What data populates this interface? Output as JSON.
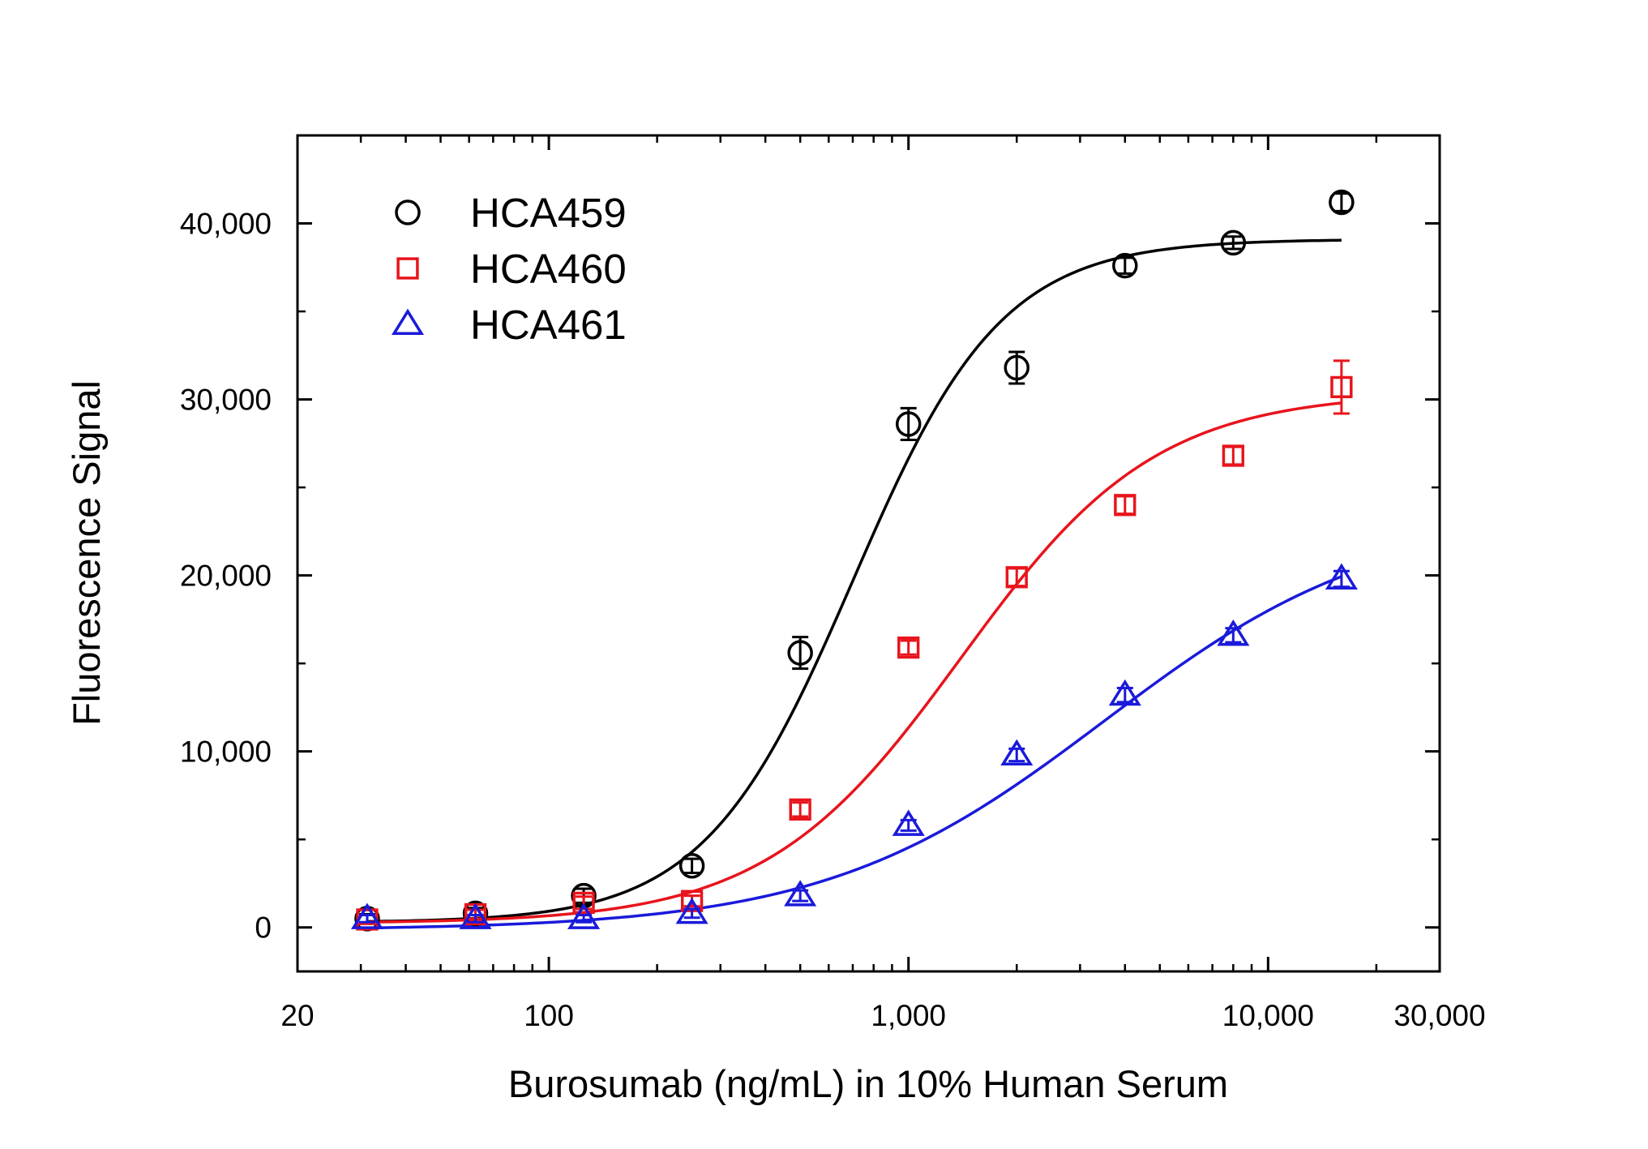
{
  "chart_data": {
    "type": "scatter",
    "title": "",
    "xlabel": "Burosumab (ng/mL) in 10% Human Serum",
    "ylabel": "Fluorescence Signal",
    "x_scale": "log",
    "xlim": [
      20,
      30000
    ],
    "ylim": [
      -2500,
      45000
    ],
    "x_ticks": [
      {
        "value": 20,
        "label": "20"
      },
      {
        "value": 100,
        "label": "100"
      },
      {
        "value": 1000,
        "label": "1,000"
      },
      {
        "value": 10000,
        "label": "10,000"
      },
      {
        "value": 30000,
        "label": "30,000"
      }
    ],
    "y_ticks": [
      {
        "value": 0,
        "label": "0"
      },
      {
        "value": 10000,
        "label": "10,000"
      },
      {
        "value": 20000,
        "label": "20,000"
      },
      {
        "value": 30000,
        "label": "30,000"
      },
      {
        "value": 40000,
        "label": "40,000"
      }
    ],
    "legend_position": "top-left",
    "x": [
      31.25,
      62.5,
      125,
      250,
      500,
      1000,
      2000,
      4000,
      8000,
      16000
    ],
    "series": [
      {
        "name": "HCA459",
        "color": "#000000",
        "marker": "circle",
        "values": [
          500,
          800,
          1800,
          3500,
          15600,
          28600,
          31800,
          37600,
          38900,
          41200
        ],
        "errors": [
          250,
          300,
          400,
          400,
          900,
          900,
          900,
          450,
          350,
          500
        ],
        "fit": {
          "bottom": 280,
          "top": 39100,
          "ec50": 700,
          "hill": 2.1
        }
      },
      {
        "name": "HCA460",
        "color": "#e8141c",
        "marker": "square",
        "values": [
          450,
          750,
          1400,
          1500,
          6700,
          15900,
          19900,
          24000,
          26800,
          30700
        ],
        "errors": [
          250,
          250,
          350,
          300,
          400,
          400,
          500,
          500,
          500,
          1500
        ],
        "fit": {
          "bottom": 230,
          "top": 30400,
          "ec50": 1400,
          "hill": 1.6
        }
      },
      {
        "name": "HCA461",
        "color": "#1a1adb",
        "marker": "triangle",
        "values": [
          500,
          500,
          500,
          800,
          1800,
          5800,
          9800,
          13200,
          16600,
          19800
        ],
        "errors": [
          200,
          200,
          200,
          250,
          300,
          300,
          350,
          400,
          400,
          450
        ],
        "fit": {
          "bottom": -150,
          "top": 23600,
          "ec50": 3500,
          "hill": 1.12
        }
      }
    ]
  }
}
